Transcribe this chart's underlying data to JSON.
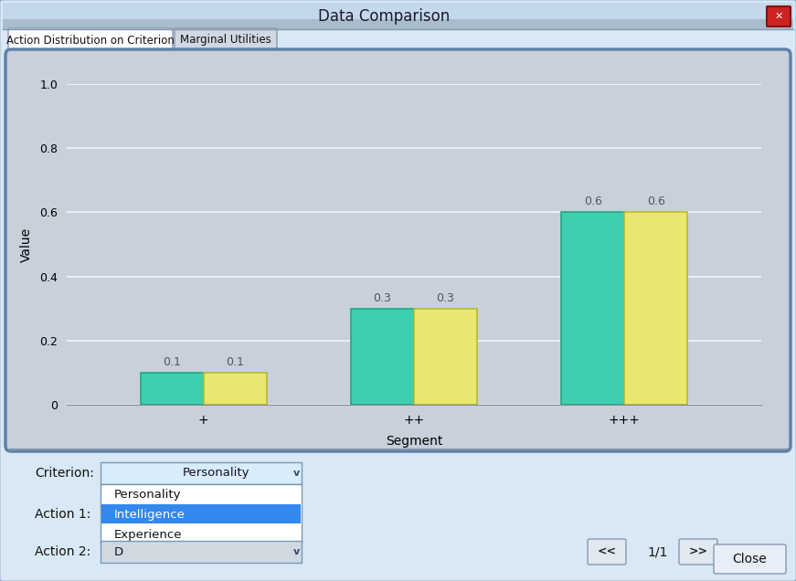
{
  "title": "Data Comparison",
  "tab1": "Action Distribution on Criterion",
  "tab2": "Marginal Utilities",
  "xlabel": "Segment",
  "ylabel": "Value",
  "segments": [
    "+",
    "++",
    "+++"
  ],
  "action1_values": [
    0.1,
    0.3,
    0.6
  ],
  "action2_values": [
    0.1,
    0.3,
    0.6
  ],
  "action1_color": "#3ECFB0",
  "action2_color": "#E8E870",
  "ylim": [
    0,
    1.0
  ],
  "yticks": [
    0,
    0.2,
    0.4,
    0.6,
    0.8,
    1.0
  ],
  "bar_width": 0.3,
  "chart_bg": "#C8D0DC",
  "dialog_bg": "#D8E8F4",
  "outer_bg": "#B8C8D8",
  "title_bg_top": "#C8DCF0",
  "title_bg_bot": "#A8BCCC",
  "dropdown_items": [
    "Personality",
    "Intelligence",
    "Experience"
  ],
  "selected_item": "Intelligence",
  "criterion_label": "Criterion:",
  "action1_label": "Action 1:",
  "action2_label": "Action 2:",
  "criterion_value": "Personality",
  "action2_value": "D",
  "nav_text": "1/1",
  "close_text": "Close",
  "bar1_border_color": "#20A880",
  "bar2_border_color": "#B8B830",
  "selected_bg": "#3388EE",
  "dropdown_bg": "#D8ECFC",
  "dropdown_border": "#7898B8",
  "action2_dd_bg": "#D0D8E0"
}
